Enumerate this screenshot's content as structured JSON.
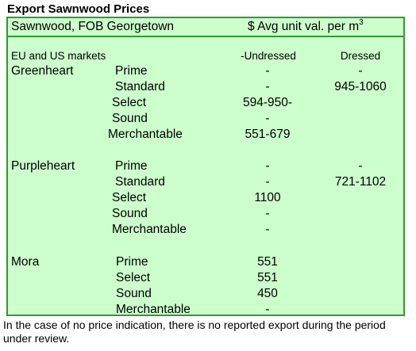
{
  "title": "Export Sawnwood Prices",
  "header": {
    "left": "Sawnwood, FOB Georgetown",
    "right_prefix": "$ Avg unit val. per m",
    "right_sup": "3"
  },
  "subheader": {
    "markets": "EU and US markets",
    "col_undressed": "-Undressed",
    "col_dressed": "Dressed"
  },
  "groups": [
    {
      "species": "Greenheart",
      "rows": [
        {
          "grade": "Prime",
          "undressed": "-",
          "dressed": "-"
        },
        {
          "grade": "Standard",
          "undressed": "-",
          "dressed": "945-1060"
        },
        {
          "grade": "Select",
          "undressed": "594-950-",
          "dressed": ""
        },
        {
          "grade": "Sound",
          "undressed": "-",
          "dressed": ""
        },
        {
          "grade": "Merchantable",
          "undressed": "551-679",
          "dressed": ""
        }
      ]
    },
    {
      "species": "Purpleheart",
      "rows": [
        {
          "grade": "Prime",
          "undressed": "-",
          "dressed": "-"
        },
        {
          "grade": "Standard",
          "undressed": "-",
          "dressed": "721-1102"
        },
        {
          "grade": "Select",
          "undressed": "1100",
          "dressed": ""
        },
        {
          "grade": "Sound",
          "undressed": "-",
          "dressed": ""
        },
        {
          "grade": "Merchantable",
          "undressed": "-",
          "dressed": ""
        }
      ]
    },
    {
      "species": "Mora",
      "rows": [
        {
          "grade": "Prime",
          "undressed": "551",
          "dressed": ""
        },
        {
          "grade": "Select",
          "undressed": "551",
          "dressed": ""
        },
        {
          "grade": "Sound",
          "undressed": "450",
          "dressed": ""
        },
        {
          "grade": "Merchantable",
          "undressed": "-",
          "dressed": ""
        }
      ]
    }
  ],
  "footnote": "In the case of no price indication, there is no reported export during the period under review.",
  "colors": {
    "fill": "#ccffcc",
    "border": "#339933"
  }
}
